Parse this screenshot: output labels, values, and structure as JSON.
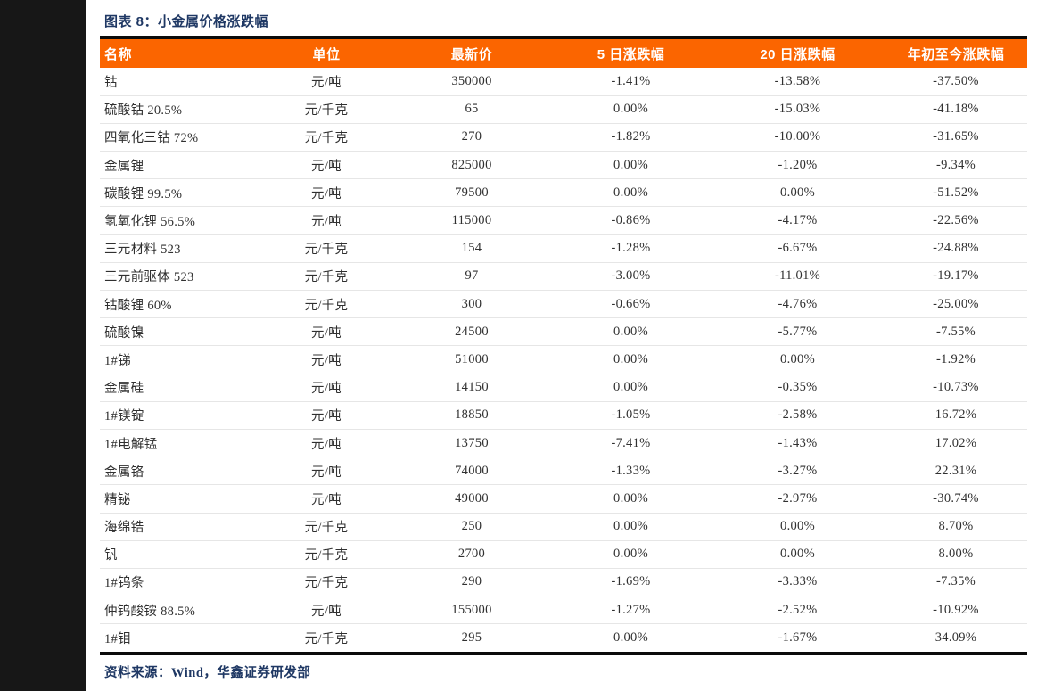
{
  "figure": {
    "title": "图表 8：小金属价格涨跌幅",
    "source": "资料来源：Wind，华鑫证券研发部"
  },
  "colors": {
    "header_bg": "#fb6500",
    "title_navy": "#1f3864",
    "body_text": "#303030",
    "left_bar": "#171717"
  },
  "table": {
    "columns": [
      "名称",
      "单位",
      "最新价",
      "5 日涨跌幅",
      "20 日涨跌幅",
      "年初至今涨跌幅"
    ],
    "rows": [
      [
        "钴",
        "元/吨",
        "350000",
        "-1.41%",
        "-13.58%",
        "-37.50%"
      ],
      [
        "硫酸钴 20.5%",
        "元/千克",
        "65",
        "0.00%",
        "-15.03%",
        "-41.18%"
      ],
      [
        "四氧化三钴 72%",
        "元/千克",
        "270",
        "-1.82%",
        "-10.00%",
        "-31.65%"
      ],
      [
        "金属锂",
        "元/吨",
        "825000",
        "0.00%",
        "-1.20%",
        "-9.34%"
      ],
      [
        "碳酸锂 99.5%",
        "元/吨",
        "79500",
        "0.00%",
        "0.00%",
        "-51.52%"
      ],
      [
        "氢氧化锂 56.5%",
        "元/吨",
        "115000",
        "-0.86%",
        "-4.17%",
        "-22.56%"
      ],
      [
        "三元材料 523",
        "元/千克",
        "154",
        "-1.28%",
        "-6.67%",
        "-24.88%"
      ],
      [
        "三元前驱体 523",
        "元/千克",
        "97",
        "-3.00%",
        "-11.01%",
        "-19.17%"
      ],
      [
        "钴酸锂 60%",
        "元/千克",
        "300",
        "-0.66%",
        "-4.76%",
        "-25.00%"
      ],
      [
        "硫酸镍",
        "元/吨",
        "24500",
        "0.00%",
        "-5.77%",
        "-7.55%"
      ],
      [
        "1#锑",
        "元/吨",
        "51000",
        "0.00%",
        "0.00%",
        "-1.92%"
      ],
      [
        "金属硅",
        "元/吨",
        "14150",
        "0.00%",
        "-0.35%",
        "-10.73%"
      ],
      [
        "1#镁锭",
        "元/吨",
        "18850",
        "-1.05%",
        "-2.58%",
        "16.72%"
      ],
      [
        "1#电解锰",
        "元/吨",
        "13750",
        "-7.41%",
        "-1.43%",
        "17.02%"
      ],
      [
        "金属铬",
        "元/吨",
        "74000",
        "-1.33%",
        "-3.27%",
        "22.31%"
      ],
      [
        "精铋",
        "元/吨",
        "49000",
        "0.00%",
        "-2.97%",
        "-30.74%"
      ],
      [
        "海绵锆",
        "元/千克",
        "250",
        "0.00%",
        "0.00%",
        "8.70%"
      ],
      [
        "钒",
        "元/千克",
        "2700",
        "0.00%",
        "0.00%",
        "8.00%"
      ],
      [
        "1#钨条",
        "元/千克",
        "290",
        "-1.69%",
        "-3.33%",
        "-7.35%"
      ],
      [
        "仲钨酸铵 88.5%",
        "元/吨",
        "155000",
        "-1.27%",
        "-2.52%",
        "-10.92%"
      ],
      [
        "1#钼",
        "元/千克",
        "295",
        "0.00%",
        "-1.67%",
        "34.09%"
      ]
    ]
  }
}
